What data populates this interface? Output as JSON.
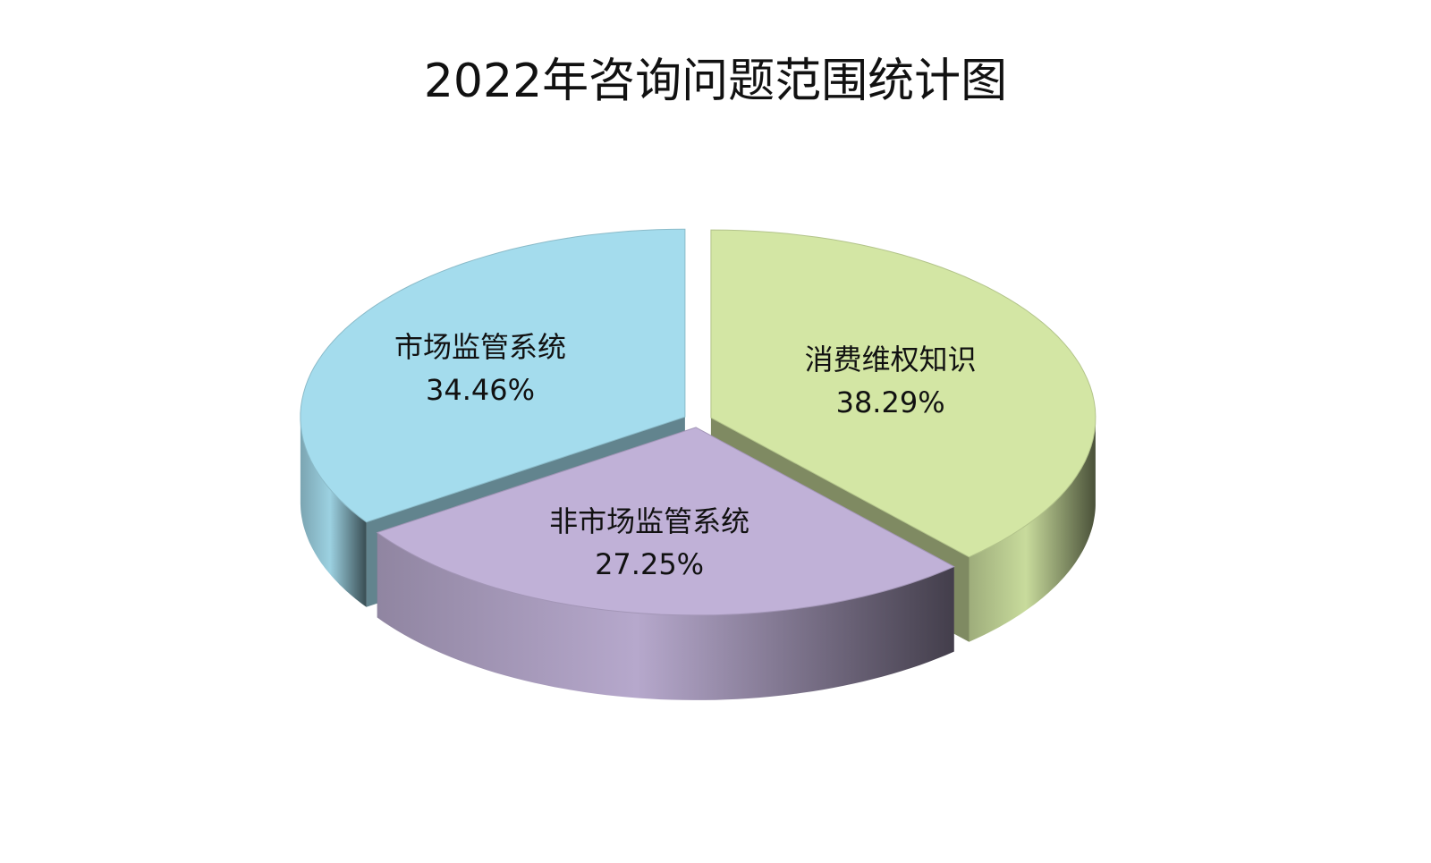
{
  "chart_data": {
    "type": "pie",
    "title": "2022年咨询问题范围统计图",
    "categories": [
      "消费维权知识",
      "非市场监管系统",
      "市场监管系统"
    ],
    "values": [
      38.29,
      27.25,
      34.46
    ],
    "value_labels": [
      "38.29%",
      "27.25%",
      "34.46%"
    ],
    "colors": [
      "#d3e6a4",
      "#c0b1d7",
      "#a4dced"
    ]
  }
}
